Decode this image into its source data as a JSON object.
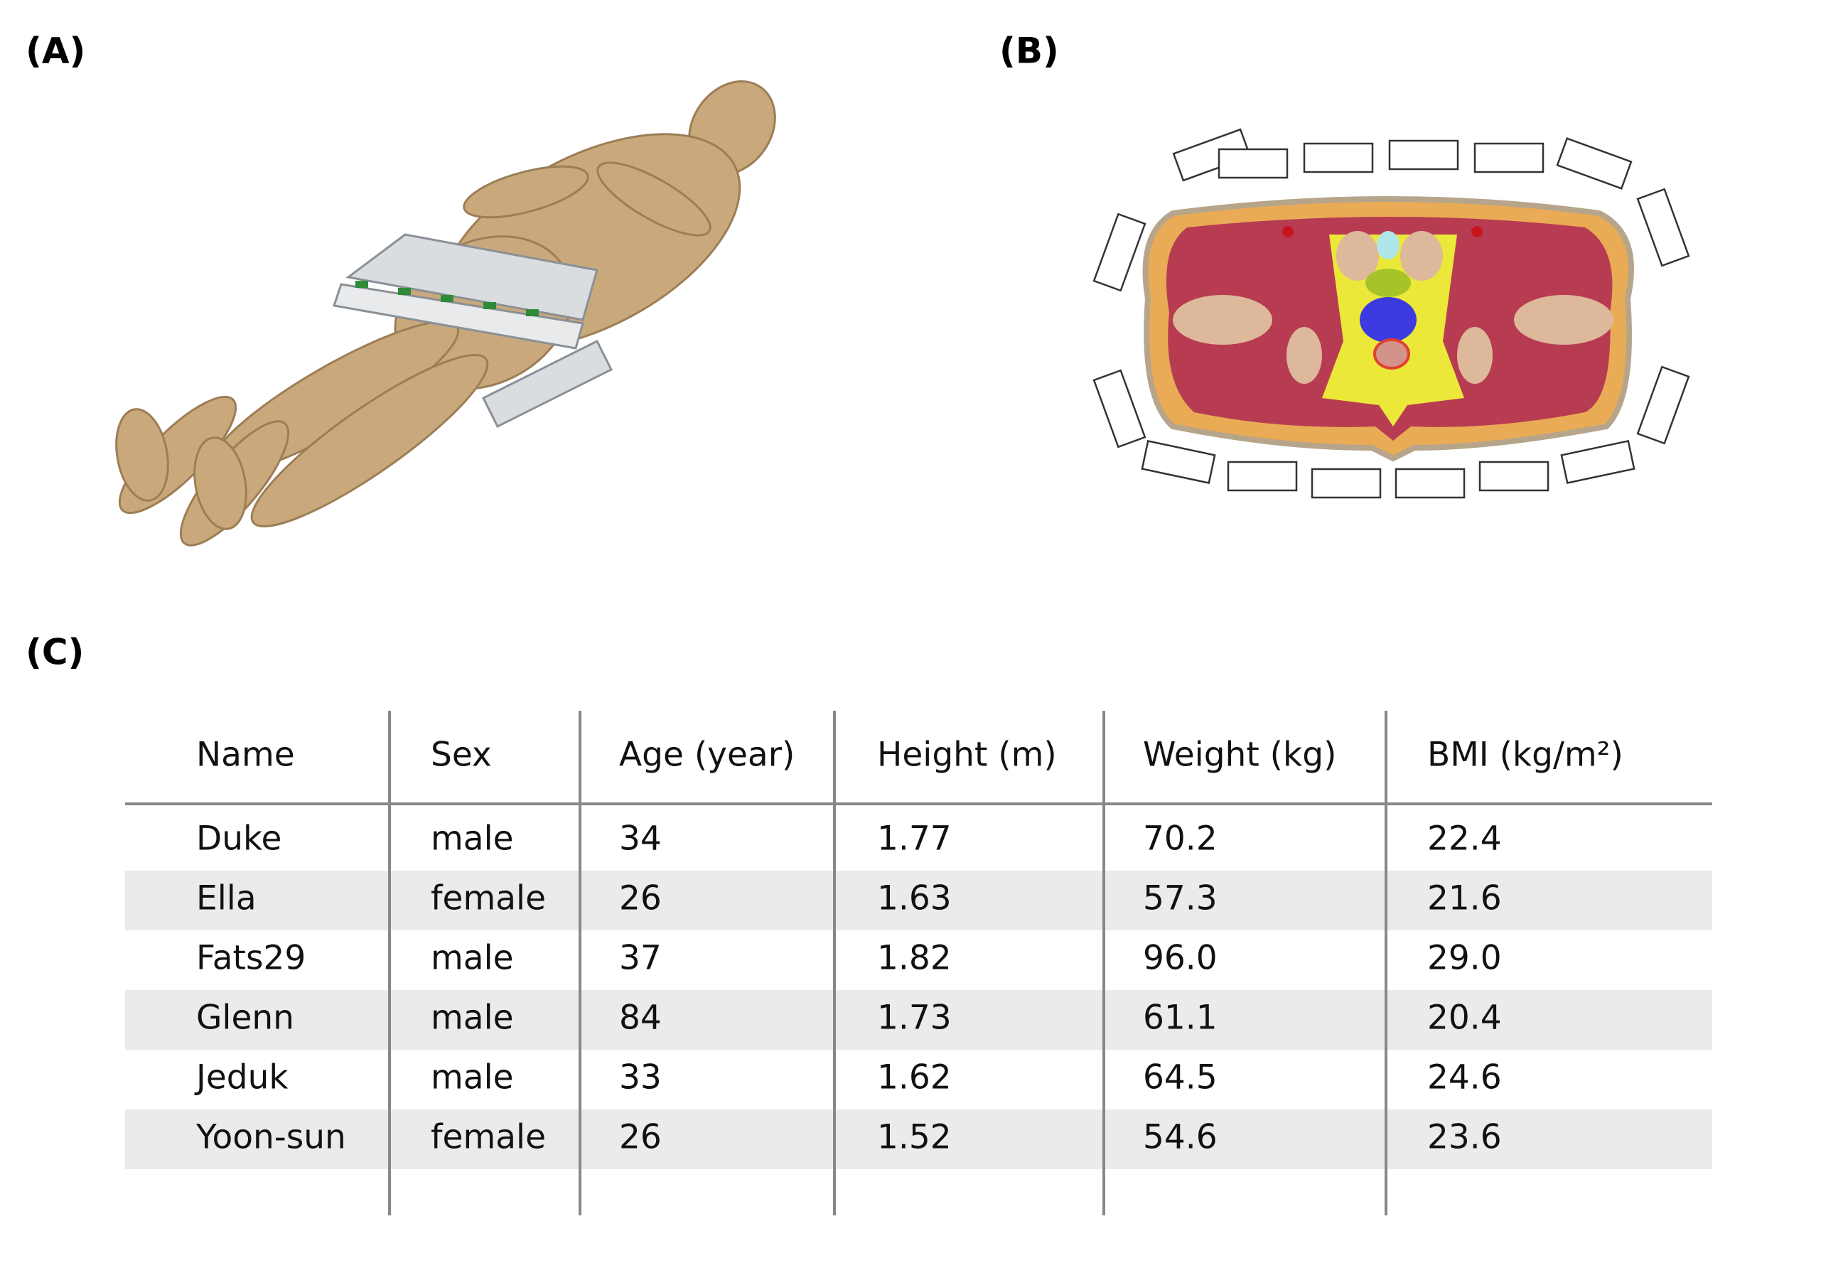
{
  "panels": {
    "a": "(A)",
    "b": "(B)",
    "c": "(C)"
  },
  "table": {
    "header": [
      "Name",
      "Sex",
      "Age (year)",
      "Height (m)",
      "Weight (kg)",
      "BMI (kg/m²)"
    ],
    "rows": [
      [
        "Duke",
        "male",
        "34",
        "1.77",
        "70.2",
        "22.4"
      ],
      [
        "Ella",
        "female",
        "26",
        "1.63",
        "57.3",
        "21.6"
      ],
      [
        "Fats29",
        "male",
        "37",
        "1.82",
        "96.0",
        "29.0"
      ],
      [
        "Glenn",
        "male",
        "84",
        "1.73",
        "61.1",
        "20.4"
      ],
      [
        "Jeduk",
        "male",
        "33",
        "1.62",
        "64.5",
        "24.6"
      ],
      [
        "Yoon-sun",
        "female",
        "26",
        "1.52",
        "54.6",
        "23.6"
      ]
    ]
  }
}
